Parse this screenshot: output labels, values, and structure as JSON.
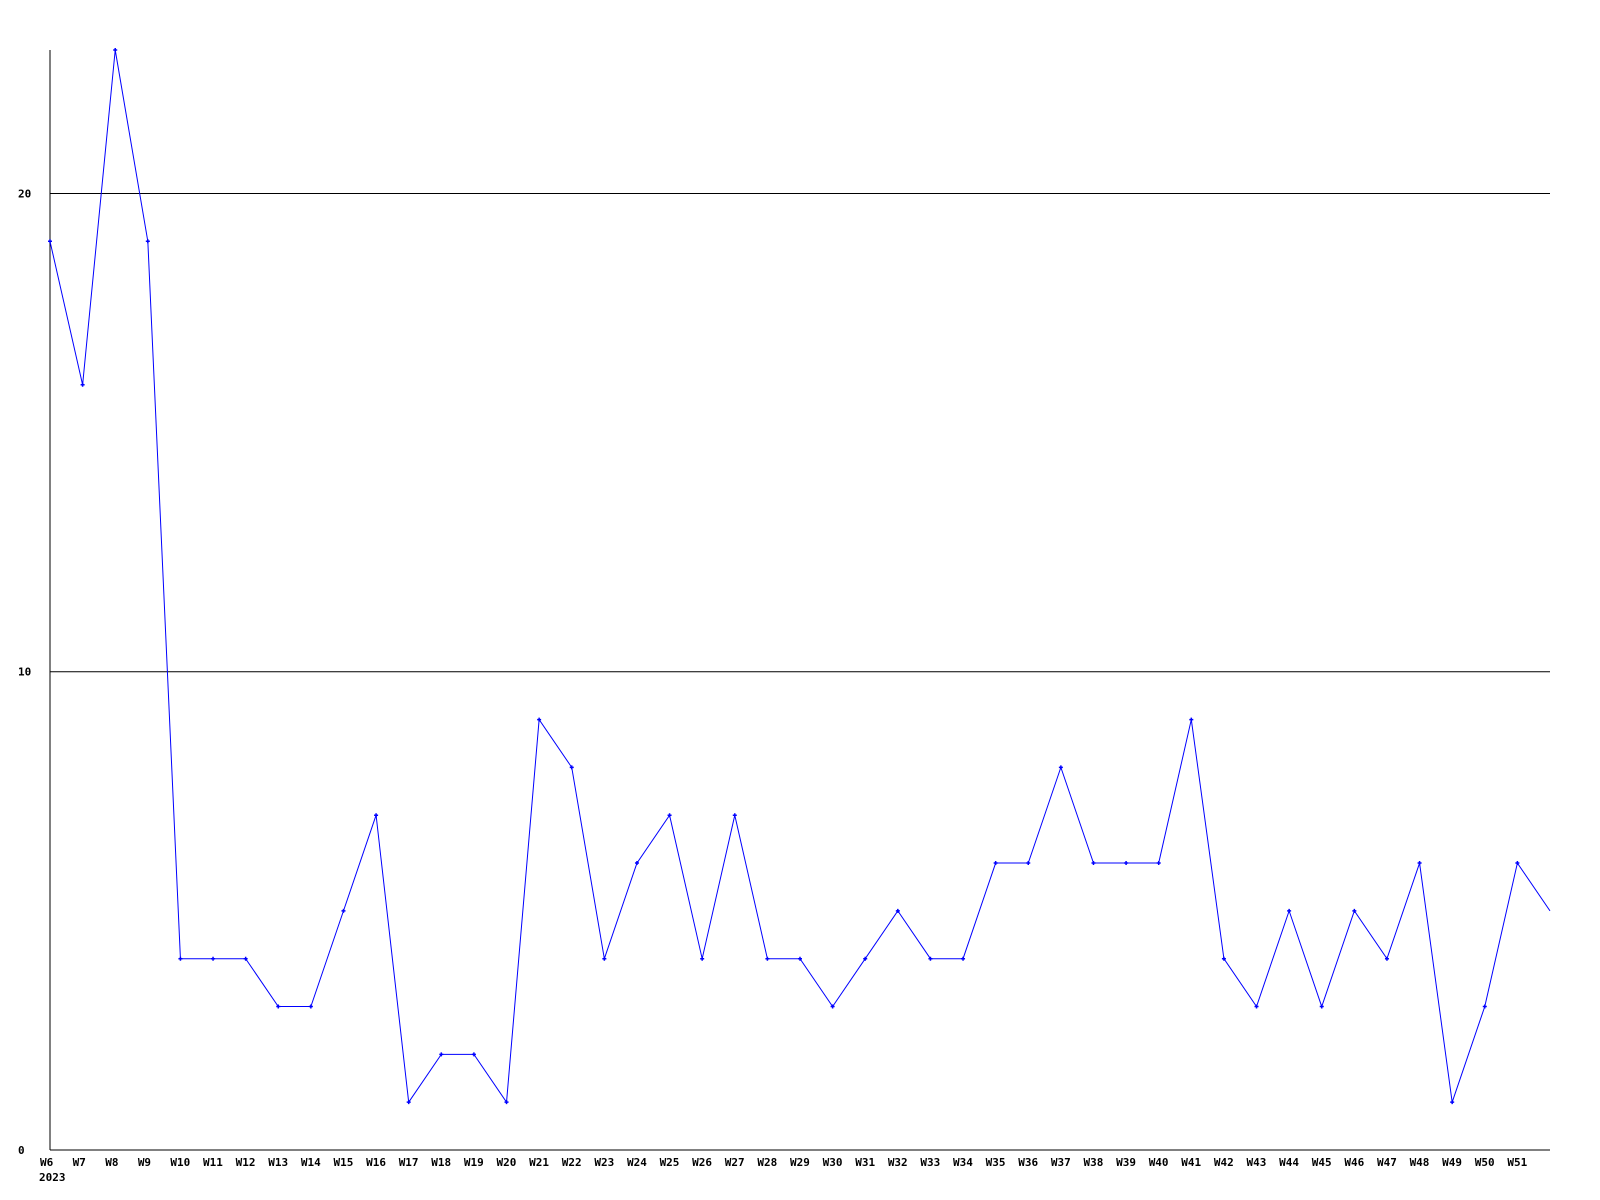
{
  "chart_data": {
    "type": "line",
    "title": "",
    "xlabel": "",
    "ylabel": "",
    "year_label": "2023",
    "ylim": [
      0,
      23
    ],
    "yticks": [
      0,
      10,
      20
    ],
    "grid": "horizontal at y ticks",
    "line_color": "#0000ff",
    "categories": [
      "W6",
      "W7",
      "W8",
      "W9",
      "W10",
      "W11",
      "W12",
      "W13",
      "W14",
      "W15",
      "W16",
      "W17",
      "W18",
      "W19",
      "W20",
      "W21",
      "W22",
      "W23",
      "W24",
      "W25",
      "W26",
      "W27",
      "W28",
      "W29",
      "W30",
      "W31",
      "W32",
      "W33",
      "W34",
      "W35",
      "W36",
      "W37",
      "W38",
      "W39",
      "W40",
      "W41",
      "W42",
      "W43",
      "W44",
      "W45",
      "W46",
      "W47",
      "W48",
      "W49",
      "W50",
      "W51",
      ""
    ],
    "values": [
      19,
      16,
      23,
      19,
      4,
      4,
      4,
      3,
      3,
      5,
      7,
      1,
      2,
      2,
      1,
      9,
      8,
      4,
      6,
      7,
      4,
      7,
      4,
      4,
      3,
      4,
      5,
      4,
      4,
      6,
      6,
      8,
      6,
      6,
      6,
      9,
      4,
      3,
      5,
      3,
      5,
      4,
      6,
      1,
      3,
      6,
      5
    ]
  }
}
